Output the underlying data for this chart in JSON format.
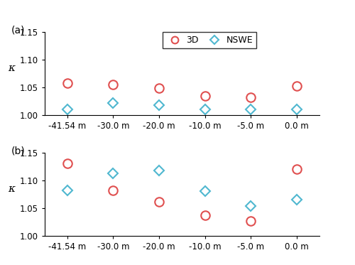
{
  "categories": [
    "-41.54 m",
    "-30.0 m",
    "-20.0 m",
    "-10.0 m",
    "-5.0 m",
    "0.0 m"
  ],
  "panel_a": {
    "3D": [
      1.058,
      1.055,
      1.049,
      1.035,
      1.032,
      1.052
    ],
    "NSWE": [
      1.01,
      1.022,
      1.018,
      1.01,
      1.01,
      1.01
    ]
  },
  "panel_b": {
    "3D": [
      1.13,
      1.082,
      1.062,
      1.037,
      1.027,
      1.12
    ],
    "NSWE": [
      1.082,
      1.112,
      1.118,
      1.08,
      1.054,
      1.065
    ]
  },
  "color_3D": "#e05050",
  "color_NSWE": "#50b8d0",
  "ylim": [
    1.0,
    1.15
  ],
  "yticks": [
    1.0,
    1.05,
    1.1,
    1.15
  ],
  "ylabel": "κ",
  "marker_3D": "o",
  "marker_NSWE": "D",
  "markersize_3D": 9,
  "markersize_NSWE": 7,
  "markeredgewidth": 1.5,
  "background": "#ffffff",
  "tick_fontsize": 8.5,
  "label_fontsize": 9,
  "legend_fontsize": 9
}
